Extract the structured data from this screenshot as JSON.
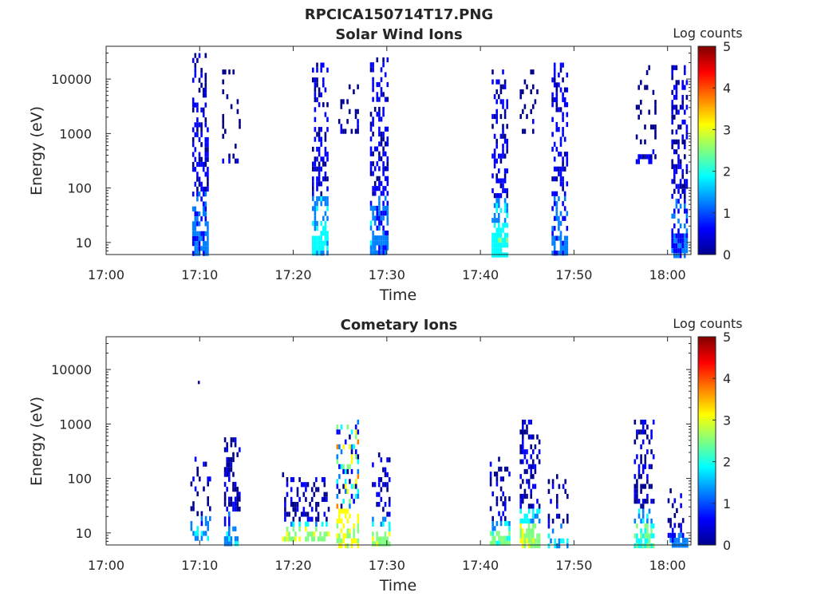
{
  "figure": {
    "title": "RPCICA150714T17.PNG"
  },
  "colormap": [
    "#00008f",
    "#0000ff",
    "#0080ff",
    "#00ffff",
    "#80ff80",
    "#ffff00",
    "#ff8000",
    "#ff0000",
    "#800000"
  ],
  "chart_data": [
    {
      "type": "heatmap",
      "title": "Solar Wind Ions",
      "xlabel": "Time",
      "ylabel": "Energy (eV)",
      "x_ticks": [
        "17:00",
        "17:10",
        "17:20",
        "17:30",
        "17:40",
        "17:50",
        "18:00"
      ],
      "x_range_minutes": [
        0,
        62.5
      ],
      "y_scale": "log",
      "ylim": [
        6,
        40000
      ],
      "y_ticks": [
        {
          "value": 10,
          "label": "10"
        },
        {
          "value": 100,
          "label": "100"
        },
        {
          "value": 1000,
          "label": "1000"
        },
        {
          "value": 10000,
          "label": "10000"
        }
      ],
      "colorbar": {
        "label": "Log counts",
        "range": [
          0,
          5
        ],
        "ticks": [
          "0",
          "1",
          "2",
          "3",
          "4",
          "5"
        ]
      },
      "clusters": [
        {
          "t_start": 9.2,
          "t_end": 10.8,
          "e_min": 6,
          "e_max": 30000,
          "density": 0.55,
          "low_level": 1.0,
          "peak_level": 0.9
        },
        {
          "t_start": 12.4,
          "t_end": 14.2,
          "e_min": 300,
          "e_max": 15000,
          "density": 0.18,
          "low_level": 0.3,
          "peak_level": 0.2
        },
        {
          "t_start": 22.0,
          "t_end": 23.6,
          "e_min": 6,
          "e_max": 20000,
          "density": 0.55,
          "low_level": 1.8,
          "peak_level": 0.9
        },
        {
          "t_start": 24.8,
          "t_end": 27.0,
          "e_min": 1000,
          "e_max": 8000,
          "density": 0.15,
          "low_level": 0.3,
          "peak_level": 0.2
        },
        {
          "t_start": 28.2,
          "t_end": 30.0,
          "e_min": 6,
          "e_max": 25000,
          "density": 0.55,
          "low_level": 1.2,
          "peak_level": 0.9
        },
        {
          "t_start": 41.2,
          "t_end": 42.8,
          "e_min": 6,
          "e_max": 15000,
          "density": 0.55,
          "low_level": 1.9,
          "peak_level": 0.9
        },
        {
          "t_start": 44.2,
          "t_end": 46.0,
          "e_min": 1000,
          "e_max": 15000,
          "density": 0.15,
          "low_level": 0.3,
          "peak_level": 0.2
        },
        {
          "t_start": 47.6,
          "t_end": 49.2,
          "e_min": 6,
          "e_max": 20000,
          "density": 0.55,
          "low_level": 1.0,
          "peak_level": 0.9
        },
        {
          "t_start": 56.6,
          "t_end": 58.8,
          "e_min": 300,
          "e_max": 18000,
          "density": 0.15,
          "low_level": 0.3,
          "peak_level": 0.2
        },
        {
          "t_start": 60.4,
          "t_end": 62.0,
          "e_min": 6,
          "e_max": 18000,
          "density": 0.55,
          "low_level": 1.0,
          "peak_level": 0.9
        }
      ]
    },
    {
      "type": "heatmap",
      "title": "Cometary Ions",
      "xlabel": "Time",
      "ylabel": "Energy (eV)",
      "x_ticks": [
        "17:00",
        "17:10",
        "17:20",
        "17:30",
        "17:40",
        "17:50",
        "18:00"
      ],
      "x_range_minutes": [
        0,
        62.5
      ],
      "y_scale": "log",
      "ylim": [
        6,
        40000
      ],
      "y_ticks": [
        {
          "value": 10,
          "label": "10"
        },
        {
          "value": 100,
          "label": "100"
        },
        {
          "value": 1000,
          "label": "1000"
        },
        {
          "value": 10000,
          "label": "10000"
        }
      ],
      "colorbar": {
        "label": "Log counts",
        "range": [
          0,
          5
        ],
        "ticks": [
          "0",
          "1",
          "2",
          "3",
          "4",
          "5"
        ]
      },
      "clusters": [
        {
          "t_start": 9.0,
          "t_end": 11.0,
          "e_min": 8,
          "e_max": 250,
          "density": 0.3,
          "low_level": 1.6,
          "peak_level": 0.4
        },
        {
          "t_start": 12.6,
          "t_end": 14.2,
          "e_min": 6,
          "e_max": 700,
          "density": 0.45,
          "low_level": 1.4,
          "peak_level": 0.5
        },
        {
          "t_start": 18.8,
          "t_end": 23.8,
          "e_min": 8,
          "e_max": 130,
          "density": 0.35,
          "low_level": 2.6,
          "peak_level": 0.5
        },
        {
          "t_start": 24.6,
          "t_end": 27.0,
          "e_min": 6,
          "e_max": 1200,
          "density": 0.5,
          "low_level": 2.8,
          "peak_level": 3.6
        },
        {
          "t_start": 28.4,
          "t_end": 30.2,
          "e_min": 6,
          "e_max": 300,
          "density": 0.45,
          "low_level": 2.6,
          "peak_level": 0.6
        },
        {
          "t_start": 41.0,
          "t_end": 43.2,
          "e_min": 6,
          "e_max": 250,
          "density": 0.4,
          "low_level": 2.4,
          "peak_level": 0.5
        },
        {
          "t_start": 44.2,
          "t_end": 46.2,
          "e_min": 6,
          "e_max": 1200,
          "density": 0.5,
          "low_level": 2.6,
          "peak_level": 0.7
        },
        {
          "t_start": 47.2,
          "t_end": 49.4,
          "e_min": 6,
          "e_max": 120,
          "density": 0.35,
          "low_level": 1.6,
          "peak_level": 0.4
        },
        {
          "t_start": 56.4,
          "t_end": 58.6,
          "e_min": 6,
          "e_max": 1200,
          "density": 0.4,
          "low_level": 2.2,
          "peak_level": 0.5
        },
        {
          "t_start": 60.0,
          "t_end": 62.2,
          "e_min": 6,
          "e_max": 100,
          "density": 0.3,
          "low_level": 1.2,
          "peak_level": 0.4
        }
      ],
      "isolated_points": [
        {
          "t": 9.8,
          "e": 6200,
          "level": 0.2
        }
      ]
    }
  ]
}
